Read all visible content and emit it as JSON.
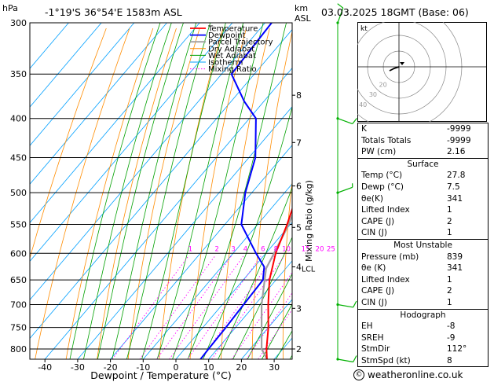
{
  "header": {
    "pressure_unit": "hPa",
    "location": "-1°19'S  36°54'E  1583m  ASL",
    "km_label": "km",
    "asl_label": "ASL",
    "datetime": "03.03.2025  18GMT  (Base: 06)"
  },
  "colors": {
    "temperature": "#ff0000",
    "dewpoint": "#0000ff",
    "parcel": "#a0a0a0",
    "dry_adiabat": "#ff8c00",
    "wet_adiabat": "#00a000",
    "isotherm": "#00a0ff",
    "mixing_ratio": "#ff00ff",
    "wind_barb": "#00b000"
  },
  "chart_data": {
    "type": "skew-t log-p",
    "xlabel": "Dewpoint / Temperature (°C)",
    "ylabel_left": "hPa",
    "ylabel_mixing": "Mixing Ratio (g/kg)",
    "pressure_ticks": [
      300,
      350,
      400,
      450,
      500,
      550,
      600,
      650,
      700,
      750,
      800
    ],
    "temperature_ticks": [
      -40,
      -30,
      -20,
      -10,
      0,
      10,
      20,
      30
    ],
    "xlim": [
      -45,
      35
    ],
    "ylim": [
      825,
      300
    ],
    "km_ticks": [
      {
        "km": 2,
        "p": 800
      },
      {
        "km": 3,
        "p": 708
      },
      {
        "km": 4,
        "p": 625
      },
      {
        "km": 5,
        "p": 555
      },
      {
        "km": 6,
        "p": 490
      },
      {
        "km": 7,
        "p": 430
      },
      {
        "km": 8,
        "p": 373
      }
    ],
    "lcl": {
      "label": "LCL",
      "p": 628
    },
    "mixing_ratio_labels": [
      "1",
      "2",
      "3",
      "4",
      "6",
      "8",
      "10",
      "15",
      "20",
      "25"
    ],
    "mixing_ratio_values": [
      1,
      2,
      3,
      4,
      6,
      8,
      10,
      15,
      20,
      25
    ],
    "legend": [
      "Temperature",
      "Dewpoint",
      "Parcel Trajectory",
      "Dry Adiabat",
      "Wet Adiabat",
      "Isotherm",
      "Mixing Ratio"
    ],
    "legend_position": "top-left",
    "temperature_profile": [
      {
        "p": 300,
        "t": -33
      },
      {
        "p": 350,
        "t": -25
      },
      {
        "p": 400,
        "t": -18
      },
      {
        "p": 450,
        "t": -11
      },
      {
        "p": 500,
        "t": -6
      },
      {
        "p": 550,
        "t": -1
      },
      {
        "p": 600,
        "t": 3
      },
      {
        "p": 650,
        "t": 8
      },
      {
        "p": 700,
        "t": 14
      },
      {
        "p": 750,
        "t": 20
      },
      {
        "p": 800,
        "t": 25
      },
      {
        "p": 825,
        "t": 27.8
      }
    ],
    "dewpoint_profile": [
      {
        "p": 300,
        "t": -58
      },
      {
        "p": 350,
        "t": -57
      },
      {
        "p": 380,
        "t": -46
      },
      {
        "p": 400,
        "t": -38
      },
      {
        "p": 450,
        "t": -28
      },
      {
        "p": 500,
        "t": -22
      },
      {
        "p": 550,
        "t": -15
      },
      {
        "p": 600,
        "t": -3
      },
      {
        "p": 625,
        "t": 3
      },
      {
        "p": 650,
        "t": 6
      },
      {
        "p": 700,
        "t": 6.5
      },
      {
        "p": 750,
        "t": 7
      },
      {
        "p": 800,
        "t": 7.3
      },
      {
        "p": 825,
        "t": 7.5
      }
    ],
    "parcel_profile": [
      {
        "p": 300,
        "t": -38
      },
      {
        "p": 350,
        "t": -27
      },
      {
        "p": 400,
        "t": -18
      },
      {
        "p": 450,
        "t": -10.5
      },
      {
        "p": 500,
        "t": -5
      },
      {
        "p": 550,
        "t": -0.5
      },
      {
        "p": 600,
        "t": 2.5
      },
      {
        "p": 628,
        "t": 4
      },
      {
        "p": 700,
        "t": 12
      },
      {
        "p": 800,
        "t": 23.5
      },
      {
        "p": 825,
        "t": 27.8
      }
    ],
    "wind_barbs": [
      {
        "p": 300,
        "dir": 200,
        "kt": 10
      },
      {
        "p": 400,
        "dir": 290,
        "kt": 10
      },
      {
        "p": 500,
        "dir": 250,
        "kt": 5
      },
      {
        "p": 700,
        "dir": 280,
        "kt": 10
      },
      {
        "p": 825,
        "dir": 280,
        "kt": 10
      }
    ],
    "hodograph": {
      "unit_label": "kt",
      "ring_labels": [
        "40",
        "30",
        "20"
      ],
      "points": [
        [
          0,
          0
        ],
        [
          -3,
          -1
        ],
        [
          -4,
          -1.5
        ],
        [
          -5,
          -2
        ],
        [
          -6,
          -2.5
        ]
      ],
      "storm_motion": [
        2,
        1
      ]
    }
  },
  "indices": {
    "rows": [
      {
        "label": "K",
        "value": "-9999"
      },
      {
        "label": "Totals Totals",
        "value": "-9999"
      },
      {
        "label": "PW (cm)",
        "value": "2.16"
      }
    ]
  },
  "surface": {
    "title": "Surface",
    "rows": [
      {
        "label": "Temp (°C)",
        "value": "27.8"
      },
      {
        "label": "Dewp (°C)",
        "value": "7.5"
      },
      {
        "label": "θe(K)",
        "value": "341"
      },
      {
        "label": "Lifted Index",
        "value": "1"
      },
      {
        "label": "CAPE (J)",
        "value": "2"
      },
      {
        "label": "CIN (J)",
        "value": "1"
      }
    ]
  },
  "most_unstable": {
    "title": "Most Unstable",
    "rows": [
      {
        "label": "Pressure (mb)",
        "value": "839"
      },
      {
        "label": "θe (K)",
        "value": "341"
      },
      {
        "label": "Lifted Index",
        "value": "1"
      },
      {
        "label": "CAPE (J)",
        "value": "2"
      },
      {
        "label": "CIN (J)",
        "value": "1"
      }
    ]
  },
  "hodograph_table": {
    "title": "Hodograph",
    "rows": [
      {
        "label": "EH",
        "value": "-8"
      },
      {
        "label": "SREH",
        "value": "-9"
      },
      {
        "label": "StmDir",
        "value": "112°"
      },
      {
        "label": "StmSpd (kt)",
        "value": "8"
      }
    ]
  },
  "footer": {
    "copyright_symbol": "©",
    "site": "weatheronline.co.uk"
  }
}
